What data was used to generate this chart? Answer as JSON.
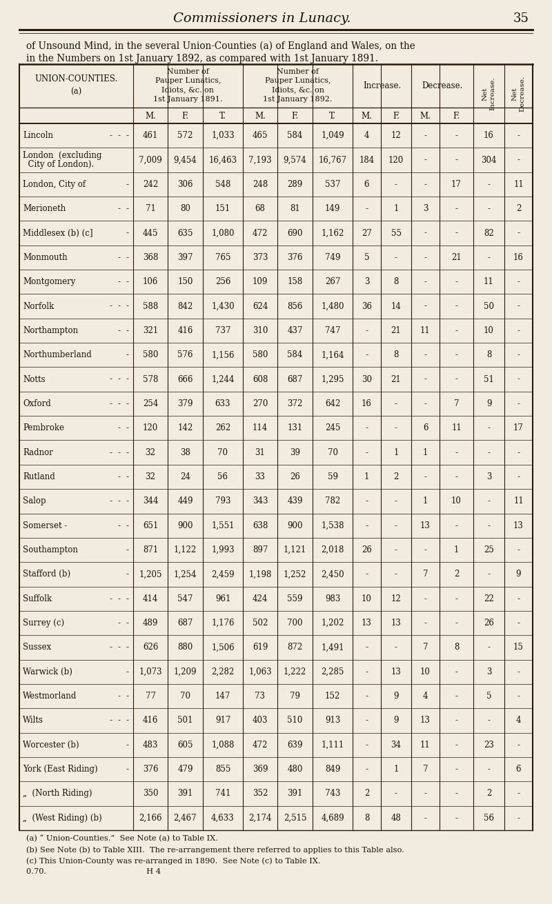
{
  "page_header": "Commissioners in Lunacy.",
  "page_number": "35",
  "intro_line1": "of Unsound Mind, in the several Union-Counties (a) of England and Wales, on the",
  "intro_line2": "in the Numbers on 1st January 1892, as compared with 1st January 1891.",
  "rows": [
    [
      "Lincoln",
      "- - -",
      "461",
      "572",
      "1,033",
      "465",
      "584",
      "1,049",
      "4",
      "12",
      "-",
      "-",
      "16",
      "-"
    ],
    [
      "London  (excluding\n  City of London).",
      "",
      "7,009",
      "9,454",
      "16,463",
      "7,193",
      "9,574",
      "16,767",
      "184",
      "120",
      "-",
      "-",
      "304",
      "-"
    ],
    [
      "London, City of",
      "- ",
      "242",
      "306",
      "548",
      "248",
      "289",
      "537",
      "6",
      "-",
      "-",
      "17",
      "-",
      "11"
    ],
    [
      "Merioneth",
      "- -",
      "71",
      "80",
      "151",
      "68",
      "81",
      "149",
      "-",
      "1",
      "3",
      "-",
      "-",
      "2"
    ],
    [
      "Middlesex (b) (c]",
      "- ",
      "445",
      "635",
      "1,080",
      "472",
      "690",
      "1,162",
      "27",
      "55",
      "-",
      "-",
      "82",
      "-"
    ],
    [
      "Monmouth",
      "- -",
      "368",
      "397",
      "765",
      "373",
      "376",
      "749",
      "5",
      "-",
      "-",
      "21",
      "-",
      "16"
    ],
    [
      "Montgomery",
      "- -",
      "106",
      "150",
      "256",
      "109",
      "158",
      "267",
      "3",
      "8",
      "-",
      "-",
      "11",
      "-"
    ],
    [
      "Norfolk",
      "- - -",
      "588",
      "842",
      "1,430",
      "624",
      "856",
      "1,480",
      "36",
      "14",
      "-",
      "-",
      "50",
      "-"
    ],
    [
      "Northampton",
      "- -",
      "321",
      "416",
      "737",
      "310",
      "437",
      "747",
      "-",
      "21",
      "11",
      "-",
      "10",
      "-"
    ],
    [
      "Northumberland",
      "- ",
      "580",
      "576",
      "1,156",
      "580",
      "584",
      "1,164",
      "-",
      "8",
      "-",
      "-",
      "8",
      "-"
    ],
    [
      "Notts",
      "- - -",
      "578",
      "666",
      "1,244",
      "608",
      "687",
      "1,295",
      "30",
      "21",
      "-",
      "-",
      "51",
      "-"
    ],
    [
      "Oxford",
      "- - -",
      "254",
      "379",
      "633",
      "270",
      "372",
      "642",
      "16",
      "-",
      "-",
      "7",
      "9",
      "-"
    ],
    [
      "Pembroke",
      "- -",
      "120",
      "142",
      "262",
      "114",
      "131",
      "245",
      "-",
      "-",
      "6",
      "11",
      "-",
      "17"
    ],
    [
      "Radnor",
      "- - -",
      "32",
      "38",
      "70",
      "31",
      "39",
      "70",
      "-",
      "1",
      "1",
      "-",
      "-",
      "-"
    ],
    [
      "Rutland",
      "- -",
      "32",
      "24",
      "56",
      "33",
      "26",
      "59",
      "1",
      "2",
      "-",
      "-",
      "3",
      "-"
    ],
    [
      "Salop",
      "- - -",
      "344",
      "449",
      "793",
      "343",
      "439",
      "782",
      "-",
      "-",
      "1",
      "10",
      "-",
      "11"
    ],
    [
      "Somerset -",
      "- -",
      "651",
      "900",
      "1,551",
      "638",
      "900",
      "1,538",
      "-",
      "-",
      "13",
      "-",
      "-",
      "13"
    ],
    [
      "Southampton",
      "- ",
      "871",
      "1,122",
      "1,993",
      "897",
      "1,121",
      "2,018",
      "26",
      "-",
      "-",
      "1",
      "25",
      "-"
    ],
    [
      "Stafford (b)",
      "- ",
      "1,205",
      "1,254",
      "2,459",
      "1,198",
      "1,252",
      "2,450",
      "-",
      "-",
      "7",
      "2",
      "-",
      "9"
    ],
    [
      "Suffolk",
      "- - -",
      "414",
      "547",
      "961",
      "424",
      "559",
      "983",
      "10",
      "12",
      "-",
      "-",
      "22",
      "-"
    ],
    [
      "Surrey (c)",
      "- -",
      "489",
      "687",
      "1,176",
      "502",
      "700",
      "1,202",
      "13",
      "13",
      "-",
      "-",
      "26",
      "-"
    ],
    [
      "Sussex",
      "- - -",
      "626",
      "880",
      "1,506",
      "619",
      "872",
      "1,491",
      "-",
      "-",
      "7",
      "8",
      "-",
      "15"
    ],
    [
      "Warwick (b)",
      "- ",
      "1,073",
      "1,209",
      "2,282",
      "1,063",
      "1,222",
      "2,285",
      "-",
      "13",
      "10",
      "-",
      "3",
      "-"
    ],
    [
      "Westmorland",
      "- -",
      "77",
      "70",
      "147",
      "73",
      "79",
      "152",
      "-",
      "9",
      "4",
      "-",
      "5",
      "-"
    ],
    [
      "Wilts",
      "- - -",
      "416",
      "501",
      "917",
      "403",
      "510",
      "913",
      "-",
      "9",
      "13",
      "-",
      "-",
      "4"
    ],
    [
      "Worcester (b)",
      "- ",
      "483",
      "605",
      "1,088",
      "472",
      "639",
      "1,111",
      "-",
      "34",
      "11",
      "-",
      "23",
      "-"
    ],
    [
      "York (East Riding)",
      "- ",
      "376",
      "479",
      "855",
      "369",
      "480",
      "849",
      "-",
      "1",
      "7",
      "-",
      "-",
      "6"
    ],
    [
      "„  (North Riding)",
      "",
      "350",
      "391",
      "741",
      "352",
      "391",
      "743",
      "2",
      "-",
      "-",
      "-",
      "2",
      "-"
    ],
    [
      "„  (West Riding) (b)",
      "",
      "2,166",
      "2,467",
      "4,633",
      "2,174",
      "2,515",
      "4,689",
      "8",
      "48",
      "-",
      "-",
      "56",
      "-"
    ]
  ],
  "footnotes": [
    "(a) “ Union-Counties.”  See Note (a) to Table IX.",
    "(b) See Note (b) to Table XIII.  The re-arrangement there referred to applies to this Table also.",
    "(c) This Union-County was re-arranged in 1890.  See Note (c) to Table IX.",
    "0.70.                                        H 4"
  ],
  "bg_color": "#f2ebe0",
  "text_color": "#1a1008",
  "line_color": "#2a1a08"
}
